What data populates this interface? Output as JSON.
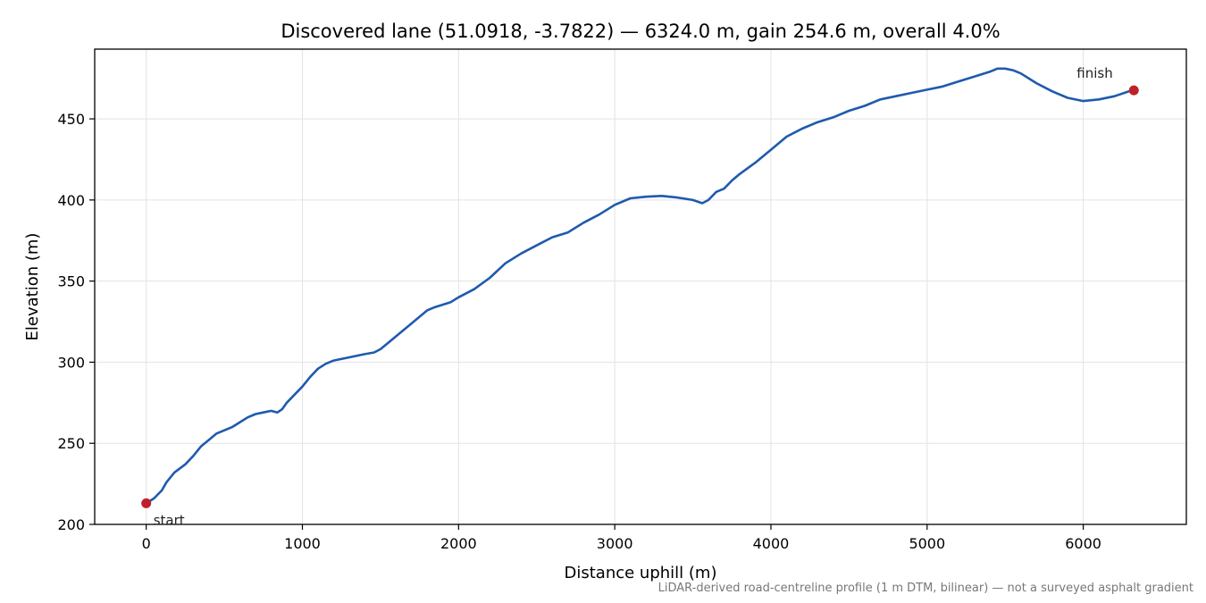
{
  "chart_data": {
    "type": "line",
    "title": "Discovered lane (51.0918, -3.7822) — 6324.0 m, gain 254.6 m, overall 4.0%",
    "xlabel": "Distance uphill (m)",
    "ylabel": "Elevation (m)",
    "xlim": [
      -330,
      6660
    ],
    "ylim": [
      200,
      493
    ],
    "xticks": [
      0,
      1000,
      2000,
      3000,
      4000,
      5000,
      6000
    ],
    "yticks": [
      200,
      250,
      300,
      350,
      400,
      450
    ],
    "grid": true,
    "line_color": "#1f5aad",
    "marker_color": "#c0202a",
    "series": [
      {
        "points": [
          [
            0,
            213
          ],
          [
            50,
            216
          ],
          [
            100,
            221
          ],
          [
            130,
            226
          ],
          [
            180,
            232
          ],
          [
            250,
            237
          ],
          [
            300,
            242
          ],
          [
            350,
            248
          ],
          [
            400,
            252
          ],
          [
            450,
            256
          ],
          [
            500,
            258
          ],
          [
            550,
            260
          ],
          [
            600,
            263
          ],
          [
            650,
            266
          ],
          [
            700,
            268
          ],
          [
            750,
            269
          ],
          [
            800,
            270
          ],
          [
            840,
            269
          ],
          [
            870,
            271
          ],
          [
            900,
            275
          ],
          [
            950,
            280
          ],
          [
            1000,
            285
          ],
          [
            1050,
            291
          ],
          [
            1100,
            296
          ],
          [
            1150,
            299
          ],
          [
            1200,
            301
          ],
          [
            1300,
            303
          ],
          [
            1400,
            305
          ],
          [
            1460,
            306
          ],
          [
            1500,
            308
          ],
          [
            1600,
            316
          ],
          [
            1700,
            324
          ],
          [
            1800,
            332
          ],
          [
            1850,
            334
          ],
          [
            1950,
            337
          ],
          [
            2000,
            340
          ],
          [
            2100,
            345
          ],
          [
            2200,
            352
          ],
          [
            2300,
            361
          ],
          [
            2400,
            367
          ],
          [
            2500,
            372
          ],
          [
            2600,
            377
          ],
          [
            2700,
            380
          ],
          [
            2800,
            386
          ],
          [
            2900,
            391
          ],
          [
            3000,
            397
          ],
          [
            3100,
            401
          ],
          [
            3200,
            402
          ],
          [
            3300,
            402.5
          ],
          [
            3400,
            401.5
          ],
          [
            3500,
            400
          ],
          [
            3560,
            398
          ],
          [
            3600,
            400
          ],
          [
            3650,
            405
          ],
          [
            3700,
            407
          ],
          [
            3750,
            412
          ],
          [
            3800,
            416
          ],
          [
            3900,
            423
          ],
          [
            4000,
            431
          ],
          [
            4100,
            439
          ],
          [
            4200,
            444
          ],
          [
            4300,
            448
          ],
          [
            4400,
            451
          ],
          [
            4500,
            455
          ],
          [
            4600,
            458
          ],
          [
            4700,
            462
          ],
          [
            4800,
            464
          ],
          [
            4900,
            466
          ],
          [
            5000,
            468
          ],
          [
            5100,
            470
          ],
          [
            5200,
            473
          ],
          [
            5300,
            476
          ],
          [
            5400,
            479
          ],
          [
            5450,
            481
          ],
          [
            5500,
            481
          ],
          [
            5550,
            480
          ],
          [
            5600,
            478
          ],
          [
            5700,
            472
          ],
          [
            5800,
            467
          ],
          [
            5900,
            463
          ],
          [
            6000,
            461
          ],
          [
            6100,
            462
          ],
          [
            6200,
            464
          ],
          [
            6324,
            468
          ]
        ]
      }
    ],
    "annotations": [
      {
        "label": "start",
        "x": 0,
        "y": 213
      },
      {
        "label": "finish",
        "x": 6324,
        "y": 467.6
      }
    ]
  },
  "footnote": "LiDAR-derived road-centreline profile (1 m DTM, bilinear) — not a surveyed asphalt gradient"
}
